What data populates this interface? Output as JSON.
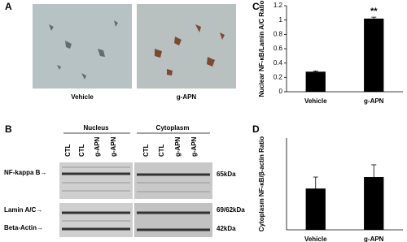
{
  "panels": {
    "a": {
      "label": "A",
      "captions": [
        "Vehicle",
        "g-APN"
      ]
    },
    "b": {
      "label": "B",
      "groups": [
        "Nucleus",
        "Cytoplasm"
      ],
      "lanes": [
        "CTL",
        "CTL",
        "g-APN",
        "g-APN",
        "CTL",
        "CTL",
        "g-APN",
        "g-APN"
      ],
      "proteins": [
        "NF-kappa B→",
        "Lamin A/C→",
        "Beta-Actin→"
      ],
      "sizes": [
        "65kDa",
        "69/62kDa",
        "42kDa"
      ]
    },
    "c": {
      "label": "C"
    },
    "d": {
      "label": "D"
    }
  },
  "chart_data": [
    {
      "type": "bar",
      "ylabel": "Nuclear NF-κB/Lamin A/C Ratio",
      "categories": [
        "Vehicle",
        "g-APN"
      ],
      "values": [
        0.28,
        1.02
      ],
      "errors": [
        0.01,
        0.02
      ],
      "annotation": "**",
      "color": "#000000",
      "ylim": [
        0,
        1.2
      ],
      "yticks": [
        0,
        0.2,
        0.4,
        0.6,
        0.8,
        1,
        1.2
      ]
    },
    {
      "type": "bar",
      "ylabel": "Cytoplasm NF-κB/β-actin Ratio",
      "categories": [
        "Vehicle",
        "g-APN"
      ],
      "values": [
        0.54,
        0.69
      ],
      "errors": [
        0.15,
        0.16
      ],
      "color": "#000000",
      "ylim": [
        0,
        1.2
      ]
    }
  ]
}
